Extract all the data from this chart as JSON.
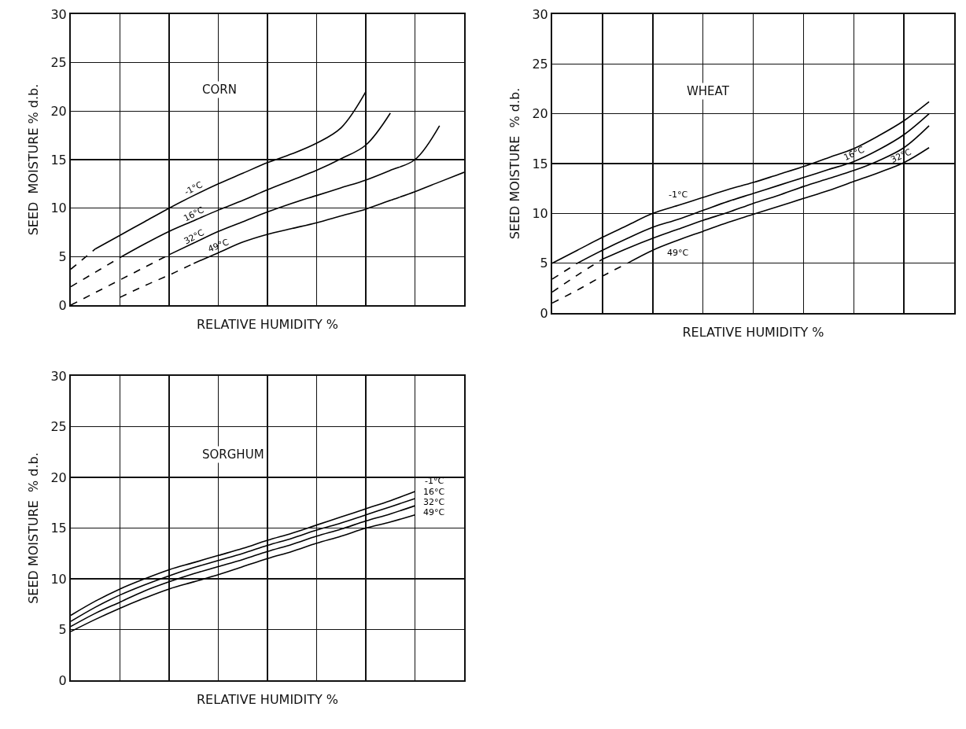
{
  "chart_data": [
    {
      "type": "line",
      "title": "CORN",
      "xlabel": "RELATIVE HUMIDITY %",
      "ylabel": "SEED  MOISTURE % d.b.",
      "categories": [
        null,
        null,
        null,
        null,
        null,
        null,
        null,
        null,
        null,
        null,
        null,
        null,
        null,
        null,
        null,
        null,
        null
      ],
      "ylim": [
        0,
        30
      ],
      "yticks": [
        0,
        5,
        10,
        15,
        20,
        25,
        30
      ],
      "grid": true,
      "legend": false,
      "tick_labels": "y",
      "marker": "none",
      "line_style": "solid",
      "series": [
        {
          "color": "#000000",
          "line_style": "dashed",
          "values": [
            3.7,
            5.8,
            null,
            null,
            null,
            null,
            null,
            null,
            null,
            null,
            null,
            null,
            null,
            null,
            null,
            null,
            null
          ]
        },
        {
          "name": "-1°C",
          "color": "#000000",
          "values": [
            null,
            5.8,
            7.2,
            8.6,
            10.0,
            11.3,
            12.5,
            13.6,
            14.7,
            15.6,
            16.7,
            18.3,
            22.0,
            null,
            null,
            null,
            null
          ]
        },
        {
          "color": "#000000",
          "line_style": "dashed",
          "values": [
            1.9,
            3.4,
            4.9,
            null,
            null,
            null,
            null,
            null,
            null,
            null,
            null,
            null,
            null,
            null,
            null,
            null,
            null
          ]
        },
        {
          "name": "16°C",
          "color": "#000000",
          "values": [
            null,
            null,
            4.9,
            6.3,
            7.6,
            8.7,
            9.8,
            10.8,
            11.9,
            12.9,
            13.9,
            15.1,
            16.5,
            19.8,
            null,
            null,
            null
          ]
        },
        {
          "color": "#000000",
          "line_style": "dashed",
          "values": [
            0,
            1.3,
            2.6,
            3.9,
            5.2,
            null,
            null,
            null,
            null,
            null,
            null,
            null,
            null,
            null,
            null,
            null,
            null
          ]
        },
        {
          "name": "32°C",
          "color": "#000000",
          "values": [
            null,
            null,
            null,
            null,
            5.2,
            6.4,
            7.6,
            8.6,
            9.6,
            10.5,
            11.3,
            12.1,
            12.9,
            13.9,
            15.0,
            18.5,
            null
          ]
        },
        {
          "color": "#000000",
          "line_style": "dashed",
          "values": [
            null,
            null,
            0.8,
            2.0,
            3.1,
            4.3,
            null,
            null,
            null,
            null,
            null,
            null,
            null,
            null,
            null,
            null,
            null
          ]
        },
        {
          "name": "49°C",
          "color": "#000000",
          "values": [
            null,
            null,
            null,
            null,
            null,
            4.3,
            5.4,
            6.5,
            7.3,
            7.9,
            8.5,
            9.2,
            9.9,
            10.8,
            11.7,
            12.7,
            13.7
          ]
        }
      ]
    },
    {
      "type": "line",
      "title": "WHEAT",
      "xlabel": "RELATIVE HUMIDITY %",
      "ylabel": "SEED MOISTURE  % d.b.",
      "categories": [
        null,
        null,
        null,
        null,
        null,
        null,
        null,
        null,
        null,
        null,
        null,
        null,
        null,
        null,
        null,
        null,
        null
      ],
      "ylim": [
        0,
        30
      ],
      "yticks": [
        0,
        5,
        10,
        15,
        20,
        25,
        30
      ],
      "grid": true,
      "legend": false,
      "tick_labels": "y",
      "marker": "none",
      "line_style": "solid",
      "series": [
        {
          "name": "-1°C",
          "color": "#000000",
          "values": [
            5.0,
            6.3,
            7.6,
            8.8,
            10.0,
            10.8,
            11.6,
            12.4,
            13.1,
            13.9,
            14.7,
            15.6,
            16.5,
            17.8,
            19.3,
            21.2,
            null
          ]
        },
        {
          "color": "#000000",
          "line_style": "dashed",
          "values": [
            3.4,
            5.0,
            null,
            null,
            null,
            null,
            null,
            null,
            null,
            null,
            null,
            null,
            null,
            null,
            null,
            null,
            null
          ]
        },
        {
          "name": "16°C",
          "color": "#000000",
          "values": [
            null,
            5.0,
            6.3,
            7.5,
            8.6,
            9.4,
            10.3,
            11.2,
            12.0,
            12.8,
            13.6,
            14.4,
            15.2,
            16.4,
            17.9,
            20.0,
            null
          ]
        },
        {
          "color": "#000000",
          "line_style": "dashed",
          "values": [
            2.1,
            3.8,
            5.4,
            null,
            null,
            null,
            null,
            null,
            null,
            null,
            null,
            null,
            null,
            null,
            null,
            null,
            null
          ]
        },
        {
          "name": "32°C",
          "color": "#000000",
          "values": [
            null,
            null,
            5.4,
            6.5,
            7.5,
            8.4,
            9.3,
            10.1,
            11.0,
            11.8,
            12.7,
            13.5,
            14.3,
            15.3,
            16.6,
            18.8,
            null
          ]
        },
        {
          "color": "#000000",
          "line_style": "dashed",
          "values": [
            1.0,
            2.3,
            3.7,
            5.0,
            null,
            null,
            null,
            null,
            null,
            null,
            null,
            null,
            null,
            null,
            null,
            null,
            null
          ]
        },
        {
          "name": "49°C",
          "color": "#000000",
          "values": [
            null,
            null,
            null,
            5.0,
            6.3,
            7.3,
            8.2,
            9.1,
            9.9,
            10.7,
            11.5,
            12.3,
            13.2,
            14.1,
            15.1,
            16.6,
            null
          ]
        }
      ]
    },
    {
      "type": "line",
      "title": "SORGHUM",
      "xlabel": "RELATIVE HUMIDITY %",
      "ylabel": "SEED MOISTURE  % d.b.",
      "categories": [
        null,
        null,
        null,
        null,
        null,
        null,
        null,
        null,
        null,
        null,
        null,
        null,
        null,
        null,
        null,
        null,
        null
      ],
      "ylim": [
        0,
        30
      ],
      "yticks": [
        0,
        5,
        10,
        15,
        20,
        25,
        30
      ],
      "grid": true,
      "legend": false,
      "tick_labels": "y",
      "marker": "none",
      "line_style": "solid",
      "series": [
        {
          "name": "-1°C",
          "color": "#000000",
          "values": [
            6.4,
            7.8,
            9.0,
            10.0,
            10.9,
            11.6,
            12.3,
            13.0,
            13.8,
            14.5,
            15.3,
            16.1,
            16.9,
            17.7,
            18.6,
            null,
            null
          ]
        },
        {
          "name": "16°C",
          "color": "#000000",
          "values": [
            5.8,
            7.2,
            8.4,
            9.4,
            10.3,
            11.1,
            11.8,
            12.5,
            13.3,
            14.0,
            14.8,
            15.5,
            16.3,
            17.1,
            17.9,
            null,
            null
          ]
        },
        {
          "name": "32°C",
          "color": "#000000",
          "values": [
            5.3,
            6.6,
            7.7,
            8.8,
            9.7,
            10.5,
            11.2,
            11.9,
            12.7,
            13.4,
            14.2,
            14.9,
            15.7,
            16.4,
            17.2,
            null,
            null
          ]
        },
        {
          "name": "49°C",
          "color": "#000000",
          "values": [
            4.8,
            6.0,
            7.1,
            8.1,
            9.0,
            9.7,
            10.4,
            11.2,
            12.0,
            12.7,
            13.5,
            14.2,
            15.0,
            15.6,
            16.3,
            null,
            null
          ]
        }
      ]
    }
  ]
}
